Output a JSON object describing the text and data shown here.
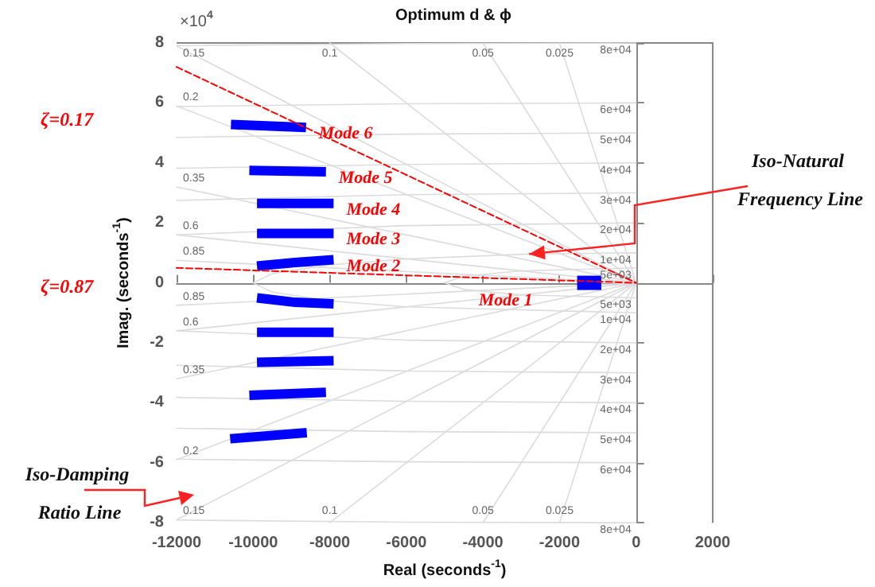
{
  "chart_data": {
    "type": "line",
    "title": "Optimum d & ϕ",
    "xlabel": "Real (seconds$^{-1}$)",
    "ylabel": "Imag. (seconds$^{-1}$)",
    "xlim": [
      -12000,
      2000
    ],
    "xticks": [
      -12000,
      -10000,
      -8000,
      -6000,
      -4000,
      -2000,
      0,
      2000
    ],
    "ylim": [
      -8,
      8
    ],
    "yticks": [
      -8,
      -6,
      -4,
      -2,
      0,
      2,
      4,
      6,
      8
    ],
    "series": [
      {
        "color": "#0000ff",
        "x": [
          -1540,
          -910
        ],
        "values": [
          0,
          0
        ]
      },
      {
        "color": "#0000ff",
        "x": [
          -9900,
          -8900,
          -7900
        ],
        "values": [
          0.56,
          0.68,
          0.77
        ]
      },
      {
        "color": "#0000ff",
        "x": [
          -9900,
          -8900,
          -7900
        ],
        "values": [
          -0.5,
          -0.65,
          -0.7
        ]
      },
      {
        "color": "#0000ff",
        "x": [
          -9900,
          -7900
        ],
        "values": [
          1.65,
          1.65
        ]
      },
      {
        "color": "#0000ff",
        "x": [
          -9900,
          -7900
        ],
        "values": [
          -1.65,
          -1.65
        ]
      },
      {
        "color": "#0000ff",
        "x": [
          -9900,
          -7900
        ],
        "values": [
          2.65,
          2.65
        ]
      },
      {
        "color": "#0000ff",
        "x": [
          -9900,
          -7900
        ],
        "values": [
          -2.65,
          -2.6
        ]
      },
      {
        "color": "#0000ff",
        "x": [
          -10100,
          -8100
        ],
        "values": [
          3.75,
          3.7
        ]
      },
      {
        "color": "#0000ff",
        "x": [
          -10100,
          -8100
        ],
        "values": [
          -3.75,
          -3.65
        ]
      },
      {
        "color": "#0000ff",
        "x": [
          -10580,
          -8620
        ],
        "values": [
          5.28,
          5.18
        ]
      },
      {
        "color": "#0000ff",
        "x": [
          -10600,
          -8600
        ],
        "values": [
          -5.2,
          -5.0
        ]
      },
      {
        "color": "#ff0000",
        "line_style": "dashed",
        "x": [
          -12000,
          0
        ],
        "values": [
          7.2,
          0
        ]
      },
      {
        "color": "#ff0000",
        "line_style": "dashed",
        "x": [
          -12000,
          0
        ],
        "values": [
          0.5,
          0
        ]
      },
      {
        "color": "#dcdcdc",
        "x": [
          0,
          -12000
        ],
        "values": [
          0,
          7.9
        ]
      },
      {
        "color": "#dcdcdc",
        "x": [
          0,
          -12000
        ],
        "values": [
          0,
          -7.9
        ]
      },
      {
        "color": "#dcdcdc",
        "x": [
          0,
          -12000
        ],
        "values": [
          0,
          5.9
        ]
      },
      {
        "color": "#dcdcdc",
        "x": [
          0,
          -12000
        ],
        "values": [
          0,
          -5.9
        ]
      },
      {
        "color": "#dcdcdc",
        "x": [
          0,
          -12000
        ],
        "values": [
          0,
          3.2
        ]
      },
      {
        "color": "#dcdcdc",
        "x": [
          0,
          -12000
        ],
        "values": [
          0,
          -3.2
        ]
      },
      {
        "color": "#dcdcdc",
        "x": [
          0,
          -12000
        ],
        "values": [
          0,
          1.6
        ]
      },
      {
        "color": "#dcdcdc",
        "x": [
          0,
          -12000
        ],
        "values": [
          0,
          -1.6
        ]
      },
      {
        "color": "#dcdcdc",
        "x": [
          0,
          -12000
        ],
        "values": [
          0,
          0.75
        ]
      },
      {
        "color": "#dcdcdc",
        "x": [
          0,
          -12000
        ],
        "values": [
          0,
          -0.75
        ]
      },
      {
        "color": "#dcdcdc",
        "x": [
          0,
          -8000
        ],
        "values": [
          0,
          8
        ]
      },
      {
        "color": "#dcdcdc",
        "x": [
          0,
          -8000
        ],
        "values": [
          0,
          -8
        ]
      },
      {
        "color": "#dcdcdc",
        "x": [
          0,
          -4000
        ],
        "values": [
          0,
          8
        ]
      },
      {
        "color": "#dcdcdc",
        "x": [
          0,
          -4000
        ],
        "values": [
          0,
          -8
        ]
      },
      {
        "color": "#dcdcdc",
        "x": [
          0,
          -2000
        ],
        "values": [
          0,
          8
        ]
      },
      {
        "color": "#dcdcdc",
        "x": [
          0,
          -2000
        ],
        "values": [
          0,
          -8
        ]
      },
      {
        "color": "#dcdcdc",
        "x": [
          0,
          -3000,
          -4500,
          -5000
        ],
        "values": [
          0.5,
          0.4,
          0.22,
          0
        ]
      },
      {
        "color": "#dcdcdc",
        "x": [
          0,
          -3000,
          -4500,
          -5000
        ],
        "values": [
          -0.5,
          -0.4,
          -0.22,
          0
        ]
      },
      {
        "color": "#dcdcdc",
        "x": [
          0,
          -2800,
          -6000,
          -8000,
          -9500,
          -10000
        ],
        "values": [
          1,
          0.96,
          0.8,
          0.6,
          0.31,
          0
        ]
      },
      {
        "color": "#dcdcdc",
        "x": [
          0,
          -6000,
          -8000,
          -9500,
          -10000
        ],
        "values": [
          -1,
          -0.8,
          -0.6,
          -0.31,
          0
        ]
      },
      {
        "color": "#dcdcdc",
        "x": [
          0,
          -6000,
          -12000
        ],
        "values": [
          2,
          1.91,
          1.6
        ]
      },
      {
        "color": "#dcdcdc",
        "x": [
          0,
          -6000,
          -12000
        ],
        "values": [
          -2,
          -1.91,
          -1.6
        ]
      },
      {
        "color": "#dcdcdc",
        "x": [
          0,
          -6000,
          -12000
        ],
        "values": [
          3,
          2.94,
          2.75
        ]
      },
      {
        "color": "#dcdcdc",
        "x": [
          0,
          -6000,
          -12000
        ],
        "values": [
          -3,
          -2.94,
          -2.75
        ]
      },
      {
        "color": "#dcdcdc",
        "x": [
          0,
          -6000,
          -12000
        ],
        "values": [
          4,
          3.95,
          3.82
        ]
      },
      {
        "color": "#dcdcdc",
        "x": [
          0,
          -6000,
          -12000
        ],
        "values": [
          -4,
          -3.95,
          -3.82
        ]
      },
      {
        "color": "#dcdcdc",
        "x": [
          0,
          -6000,
          -12000
        ],
        "values": [
          5,
          4.96,
          4.85
        ]
      },
      {
        "color": "#dcdcdc",
        "x": [
          0,
          -6000,
          -12000
        ],
        "values": [
          -5,
          -4.96,
          -4.85
        ]
      },
      {
        "color": "#dcdcdc",
        "x": [
          0,
          -6000,
          -12000
        ],
        "values": [
          6,
          5.97,
          5.88
        ]
      },
      {
        "color": "#dcdcdc",
        "x": [
          0,
          -6000,
          -12000
        ],
        "values": [
          -6,
          -5.97,
          -5.88
        ]
      },
      {
        "color": "#dcdcdc",
        "x": [
          0,
          -6000,
          -12000
        ],
        "values": [
          8,
          7.98,
          7.91
        ]
      },
      {
        "color": "#dcdcdc",
        "x": [
          0,
          -6000,
          -12000
        ],
        "values": [
          -8,
          -7.98,
          -7.91
        ]
      }
    ],
    "annotations": [
      "×10$^{4}$",
      "ζ=0.17",
      "ζ=0.87",
      "Iso-Damping Ratio Line",
      {
        "text": "Iso-Natural Frequency Line",
        "x": -2800,
        "y": 0.96
      },
      {
        "text": "Mode 1",
        "x": -1540,
        "y": 0
      },
      {
        "text": "Mode 2",
        "x": -7900,
        "y": 0.77
      },
      {
        "text": "Mode 3",
        "x": -7900,
        "y": 1.65
      },
      {
        "text": "Mode 4",
        "x": -7900,
        "y": 2.65
      },
      {
        "text": "Mode 5",
        "x": -8100,
        "y": 3.7
      },
      {
        "text": "Mode 6",
        "x": -8620,
        "y": 5.18
      },
      {
        "text": "0.15",
        "x": -12000,
        "y": 7.9
      },
      {
        "text": "0.2",
        "x": -12000,
        "y": 5.9
      },
      {
        "text": "0.35",
        "x": -12000,
        "y": 3.2
      },
      {
        "text": "0.6",
        "x": -12000,
        "y": 1.6
      },
      {
        "text": "0.85",
        "x": -12000,
        "y": 0.75
      },
      {
        "text": "0.85",
        "x": -12000,
        "y": -0.75
      },
      {
        "text": "0.6",
        "x": -12000,
        "y": -1.6
      },
      {
        "text": "0.35",
        "x": -12000,
        "y": -3.2
      },
      {
        "text": "0.2",
        "x": -12000,
        "y": -5.9
      },
      {
        "text": "0.15",
        "x": -12000,
        "y": -7.9
      },
      {
        "text": "0.1",
        "x": -8000,
        "y": 8
      },
      {
        "text": "0.05",
        "x": -4000,
        "y": 8
      },
      {
        "text": "0.025",
        "x": -2000,
        "y": 8
      },
      {
        "text": "0.1",
        "x": -8000,
        "y": -8
      },
      {
        "text": "0.05",
        "x": -4000,
        "y": -8
      },
      {
        "text": "0.025",
        "x": -2000,
        "y": -8
      },
      {
        "text": "8e+04",
        "x": 0,
        "y": 8
      },
      {
        "text": "6e+04",
        "x": 0,
        "y": 6
      },
      {
        "text": "5e+04",
        "x": 0,
        "y": 5
      },
      {
        "text": "4e+04",
        "x": 0,
        "y": 4
      },
      {
        "text": "3e+04",
        "x": 0,
        "y": 3
      },
      {
        "text": "2e+04",
        "x": 0,
        "y": 2
      },
      {
        "text": "1e+04",
        "x": 0,
        "y": 1
      },
      {
        "text": "5e+03",
        "x": 0,
        "y": 0.5
      },
      {
        "text": "5e+03",
        "x": 0,
        "y": -0.5
      },
      {
        "text": "1e+04",
        "x": 0,
        "y": -1
      },
      {
        "text": "2e+04",
        "x": 0,
        "y": -2
      },
      {
        "text": "3e+04",
        "x": 0,
        "y": -3
      },
      {
        "text": "4e+04",
        "x": 0,
        "y": -4
      },
      {
        "text": "5e+04",
        "x": 0,
        "y": -5
      },
      {
        "text": "6e+04",
        "x": 0,
        "y": -6
      },
      {
        "text": "8e+04",
        "x": 0,
        "y": -8
      }
    ]
  }
}
